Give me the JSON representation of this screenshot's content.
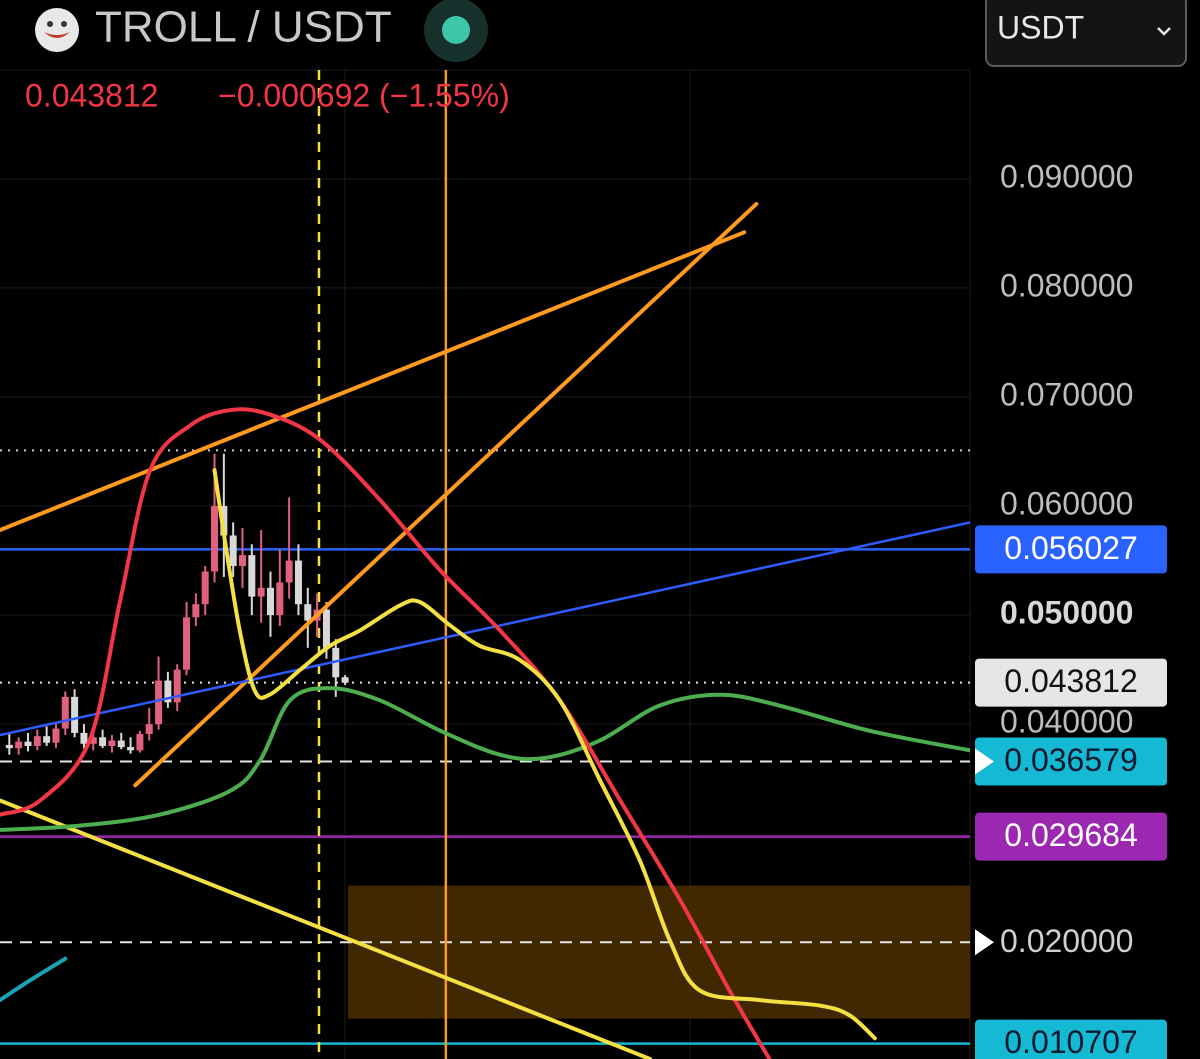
{
  "header": {
    "title": "TROLL / USDT",
    "price": "0.043812",
    "change": "−0.000692 (−1.55%)",
    "currency": "USDT"
  },
  "chart_data": {
    "type": "candlestick",
    "up_color": "#e0607e",
    "down_color": "#d9d9d9",
    "x": [
      1,
      2,
      3,
      4,
      5,
      6,
      7,
      8,
      9,
      10,
      11,
      12,
      13,
      14,
      15,
      16,
      17,
      18,
      19,
      20,
      21,
      22,
      23,
      24,
      25,
      26,
      27,
      28,
      29,
      30,
      31,
      32,
      33,
      34,
      35,
      36,
      37
    ],
    "open": [
      0.0381,
      0.0378,
      0.0384,
      0.038,
      0.0389,
      0.0383,
      0.0396,
      0.0425,
      0.0392,
      0.0382,
      0.0388,
      0.038,
      0.0385,
      0.0379,
      0.0376,
      0.0391,
      0.04,
      0.044,
      0.042,
      0.045,
      0.0498,
      0.051,
      0.054,
      0.06,
      0.0573,
      0.0545,
      0.0555,
      0.0517,
      0.0525,
      0.05,
      0.053,
      0.055,
      0.051,
      0.0495,
      0.0505,
      0.047,
      0.0443
    ],
    "high": [
      0.0392,
      0.0388,
      0.0392,
      0.0395,
      0.0398,
      0.0402,
      0.043,
      0.0432,
      0.04,
      0.0392,
      0.0395,
      0.039,
      0.0392,
      0.0388,
      0.0394,
      0.0415,
      0.0462,
      0.0448,
      0.0455,
      0.0512,
      0.052,
      0.0545,
      0.0648,
      0.0648,
      0.0585,
      0.058,
      0.0565,
      0.0578,
      0.054,
      0.056,
      0.0608,
      0.0565,
      0.0525,
      0.052,
      0.0512,
      0.0478,
      0.0445
    ],
    "low": [
      0.0372,
      0.0372,
      0.0375,
      0.0376,
      0.038,
      0.0378,
      0.039,
      0.0388,
      0.0378,
      0.0376,
      0.0378,
      0.0374,
      0.0377,
      0.0373,
      0.0374,
      0.0385,
      0.0395,
      0.0415,
      0.0412,
      0.0445,
      0.049,
      0.05,
      0.053,
      0.0535,
      0.0535,
      0.0525,
      0.05,
      0.0493,
      0.048,
      0.049,
      0.0515,
      0.05,
      0.047,
      0.048,
      0.046,
      0.0425,
      0.0436
    ],
    "close": [
      0.0378,
      0.0384,
      0.038,
      0.0389,
      0.0383,
      0.0396,
      0.0425,
      0.0392,
      0.0382,
      0.0388,
      0.038,
      0.0385,
      0.0379,
      0.0376,
      0.0391,
      0.04,
      0.044,
      0.042,
      0.045,
      0.0498,
      0.051,
      0.054,
      0.06,
      0.0573,
      0.0545,
      0.0555,
      0.0517,
      0.0525,
      0.05,
      0.053,
      0.055,
      0.051,
      0.0495,
      0.0505,
      0.047,
      0.0443,
      0.0438
    ],
    "xlim": [
      0,
      104
    ],
    "ylim": [
      0.0093,
      0.1064
    ],
    "grid": true,
    "yticks": [
      {
        "value": 0.09,
        "label": "0.090000"
      },
      {
        "value": 0.08,
        "label": "0.080000"
      },
      {
        "value": 0.07,
        "label": "0.070000"
      },
      {
        "value": 0.06,
        "label": "0.060000"
      },
      {
        "value": 0.05,
        "label": "0.050000",
        "bold": true
      },
      {
        "value": 0.04,
        "label": "0.040000"
      }
    ],
    "zone": {
      "x": [
        37.3,
        104
      ],
      "values": [
        0.0252,
        0.013
      ],
      "color": "#4a2f02"
    },
    "vertical_lines": [
      {
        "x": 34.2,
        "color": "#f5e042",
        "dashed": true
      },
      {
        "x": 47.8,
        "color": "#f59b1e",
        "dashed": false
      }
    ],
    "dotted_levels": [
      0.0651
    ],
    "trend_lines": [
      {
        "color": "#ff9a1f",
        "x": [
          0,
          79.8
        ],
        "values": [
          0.0578,
          0.0851
        ]
      },
      {
        "color": "#ff9a1f",
        "x": [
          14.5,
          81.1
        ],
        "values": [
          0.0344,
          0.0877
        ]
      },
      {
        "color": "#2f5cff",
        "x": [
          0,
          104
        ],
        "values": [
          0.039,
          0.0585
        ]
      },
      {
        "color": "#f5e042",
        "x": [
          0,
          69.7
        ],
        "values": [
          0.033,
          0.0093
        ]
      }
    ],
    "curves": [
      {
        "color": "#4cae4f",
        "x": [
          0,
          8.6,
          17.1,
          24.7,
          27.9,
          31.1,
          35.4,
          40.7,
          47.2,
          53.6,
          58.4,
          64.3,
          70.7,
          77.2,
          83.6,
          93.2,
          104.0
        ],
        "values": [
          0.0303,
          0.0307,
          0.0317,
          0.0339,
          0.0367,
          0.0422,
          0.0433,
          0.0422,
          0.0394,
          0.0372,
          0.0369,
          0.0385,
          0.0417,
          0.0427,
          0.0417,
          0.0394,
          0.0376
        ]
      },
      {
        "color": "#1aa3b5",
        "x": [
          0,
          3.2,
          7.0
        ],
        "values": [
          0.0147,
          0.0165,
          0.0185
        ]
      },
      {
        "color": "#f23645",
        "x": [
          0,
          4.3,
          9.6,
          12.9,
          16.1,
          20.4,
          24.7,
          28.9,
          34.3,
          40.7,
          47.2,
          53.6,
          60.0,
          66.5,
          72.9,
          78.2,
          82.5
        ],
        "values": [
          0.0317,
          0.033,
          0.0385,
          0.0514,
          0.0633,
          0.0674,
          0.0688,
          0.0684,
          0.0661,
          0.0606,
          0.0541,
          0.0486,
          0.0422,
          0.033,
          0.0239,
          0.0156,
          0.0093
        ]
      },
      {
        "color": "#f5e042",
        "x": [
          23.0,
          24.1,
          25.7,
          27.3,
          28.9,
          32.2,
          35.4,
          38.6,
          42.9,
          45.0,
          48.2,
          51.4,
          55.7,
          60.0,
          64.3,
          68.6,
          71.8,
          75.0,
          81.5,
          87.9,
          91.1,
          93.8
        ],
        "values": [
          0.0633,
          0.0569,
          0.0486,
          0.0431,
          0.0427,
          0.045,
          0.0472,
          0.0486,
          0.0509,
          0.0512,
          0.0491,
          0.0472,
          0.0459,
          0.0422,
          0.0349,
          0.0275,
          0.0202,
          0.0156,
          0.0147,
          0.0142,
          0.0133,
          0.0112
        ]
      }
    ],
    "price_lines": [
      {
        "value": 0.056027,
        "label": "0.056027",
        "color": "#2962ff",
        "line": "solid",
        "boxed": true,
        "text_color": "#ffffff"
      },
      {
        "value": 0.043812,
        "label": "0.043812",
        "color": "#e6e6e6",
        "line": "dotted",
        "boxed": true,
        "text_color": "#111111"
      },
      {
        "value": 0.036579,
        "label": "0.036579",
        "color": "#16b9d4",
        "line_color": "#e6e6e6",
        "line": "dashed",
        "boxed": true,
        "text_color": "#0b1a2e",
        "arrow": true
      },
      {
        "value": 0.029684,
        "label": "0.029684",
        "color": "#9c27b0",
        "line": "solid",
        "boxed": true,
        "text_color": "#ffffff"
      },
      {
        "value": 0.02,
        "label": "0.020000",
        "color": "#e6e6e6",
        "line": "dashed",
        "boxed": false,
        "text_color": "#cfcfcf",
        "arrow": true
      },
      {
        "value": 0.010707,
        "label": "0.010707",
        "color": "#16b9d4",
        "line": "solid",
        "boxed": true,
        "text_color": "#0b1a2e"
      }
    ]
  }
}
